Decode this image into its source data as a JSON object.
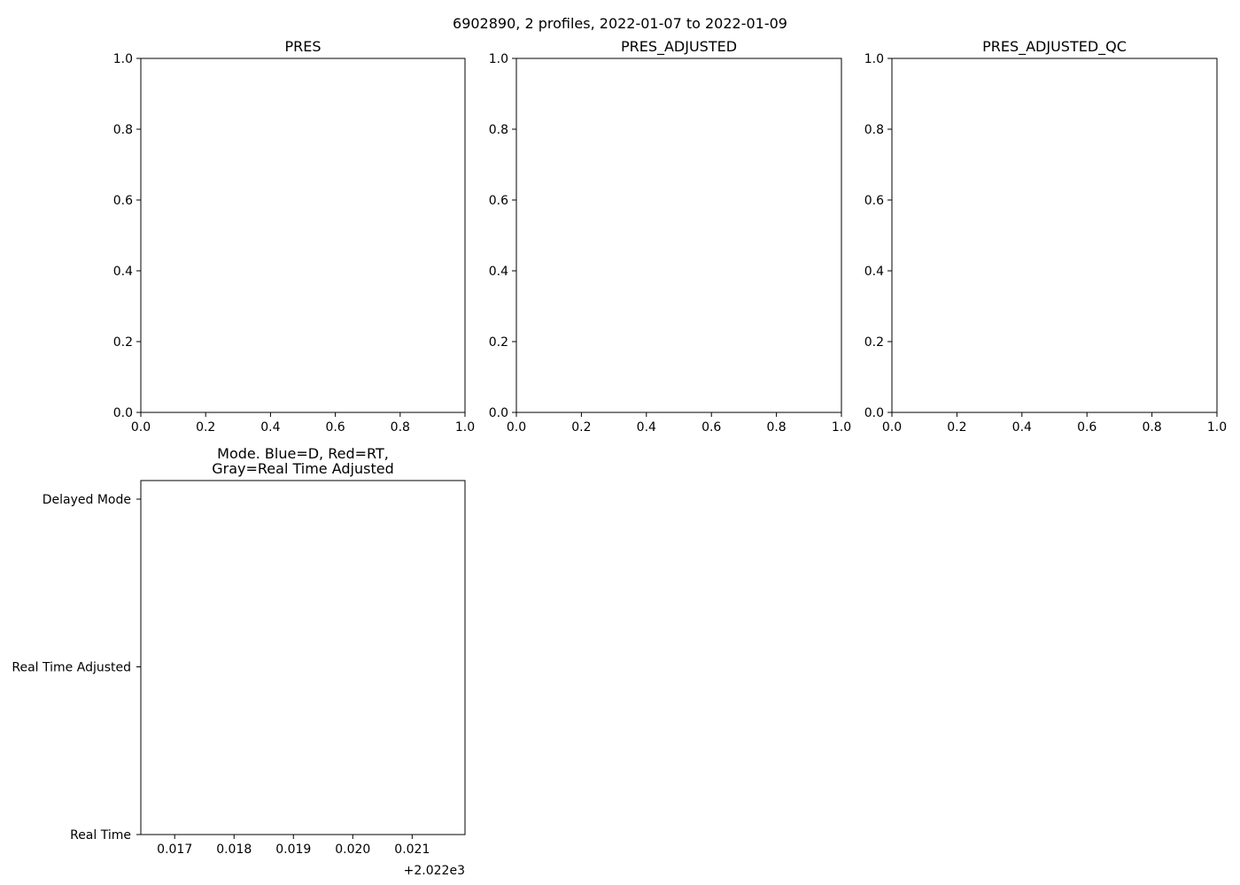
{
  "figure": {
    "suptitle": "6902890, 2 profiles, 2022-01-07 to 2022-01-09"
  },
  "chart_data": [
    {
      "type": "scatter",
      "title": "PRES",
      "xlabel": "",
      "ylabel": "",
      "xlim": [
        0.0,
        1.0
      ],
      "ylim": [
        0.0,
        1.0
      ],
      "x_ticks": [
        "0.0",
        "0.2",
        "0.4",
        "0.6",
        "0.8",
        "1.0"
      ],
      "y_ticks": [
        "0.0",
        "0.2",
        "0.4",
        "0.6",
        "0.8",
        "1.0"
      ],
      "grid": false,
      "series": []
    },
    {
      "type": "scatter",
      "title": "PRES_ADJUSTED",
      "xlabel": "",
      "ylabel": "",
      "xlim": [
        0.0,
        1.0
      ],
      "ylim": [
        0.0,
        1.0
      ],
      "x_ticks": [
        "0.0",
        "0.2",
        "0.4",
        "0.6",
        "0.8",
        "1.0"
      ],
      "y_ticks": [
        "0.0",
        "0.2",
        "0.4",
        "0.6",
        "0.8",
        "1.0"
      ],
      "grid": false,
      "series": []
    },
    {
      "type": "scatter",
      "title": "PRES_ADJUSTED_QC",
      "xlabel": "",
      "ylabel": "",
      "xlim": [
        0.0,
        1.0
      ],
      "ylim": [
        0.0,
        1.0
      ],
      "x_ticks": [
        "0.0",
        "0.2",
        "0.4",
        "0.6",
        "0.8",
        "1.0"
      ],
      "y_ticks": [
        "0.0",
        "0.2",
        "0.4",
        "0.6",
        "0.8",
        "1.0"
      ],
      "grid": false,
      "series": []
    },
    {
      "type": "scatter",
      "title": "Mode. Blue=D, Red=RT,\nGray=Real Time Adjusted",
      "title_lines": [
        "Mode. Blue=D, Red=RT,",
        "Gray=Real Time Adjusted"
      ],
      "xlabel": "",
      "ylabel": "",
      "x_offset_label": "+2.022e3",
      "xlim": [
        0.01643,
        0.02189
      ],
      "x_ticks": [
        "0.017",
        "0.018",
        "0.019",
        "0.020",
        "0.021"
      ],
      "categories": [
        "Real Time",
        "Real Time Adjusted",
        "Delayed Mode"
      ],
      "grid": false,
      "series": []
    }
  ]
}
